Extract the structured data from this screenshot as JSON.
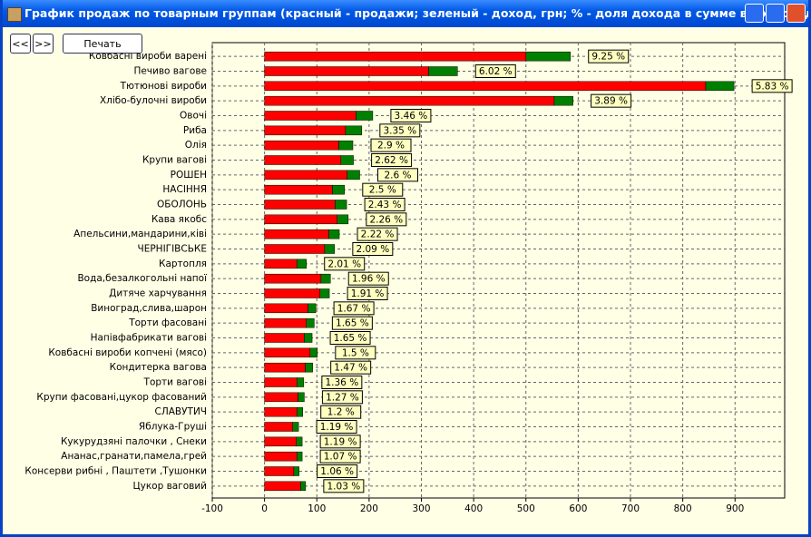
{
  "window": {
    "title": "График продаж по товарным группам (красный - продажи; зеленый - доход, грн; % - доля дохода в сумме всех доходов)"
  },
  "toolbar": {
    "buttons": [
      "<<",
      ">>",
      "Печать"
    ]
  },
  "chart_data": {
    "type": "stacked-barh",
    "categories": [
      "Ковбасні вироби варені",
      "Печиво вагове",
      "Тютюнові вироби",
      "Хлібо-булочні вироби",
      "Овочі",
      "Риба",
      "Олія",
      "Крупи вагові",
      "РОШЕН",
      "НАСІННЯ",
      "ОБОЛОНЬ",
      "Кава якобс",
      "Апельсини,мандарини,ківі",
      "ЧЕРНІГІВСЬКЕ",
      "Картопля",
      "Вода,безалкогольні напої",
      "Дитяче харчування",
      "Виноград,слива,шарон",
      "Торти фасовані",
      "Напівфабрикати вагові",
      "Ковбасні вироби копчені (мясо)",
      "Кондитерка вагова",
      "Торти вагові",
      "Крупи фасовані,цукор фасований",
      "СЛАВУТИЧ",
      "Яблука-Груші",
      "Кукурудзяні палочки , Снеки",
      "Ананас,гранати,памела,грей",
      "Консерви рибні , Паштети ,Тушонки",
      "Цукор ваговий"
    ],
    "series": [
      {
        "color": "#ff0000",
        "values": [
          500,
          314,
          844,
          554,
          175,
          155,
          142,
          146,
          158,
          130,
          135,
          139,
          123,
          115,
          62,
          108,
          106,
          83,
          80,
          76,
          87,
          78,
          62,
          64,
          62,
          54,
          61,
          62,
          56,
          69
        ]
      },
      {
        "color": "#008000",
        "values": [
          85,
          55,
          54,
          36,
          32,
          31,
          27,
          24,
          24,
          23,
          22,
          21,
          20,
          19,
          18,
          18,
          18,
          15,
          15,
          15,
          14,
          14,
          13,
          12,
          11,
          11,
          11,
          10,
          10,
          9.5
        ]
      }
    ],
    "share": {
      "values": [
        9.25,
        6.02,
        5.83,
        3.89,
        3.46,
        3.35,
        2.9,
        2.62,
        2.6,
        2.5,
        2.43,
        2.26,
        2.22,
        2.09,
        2.01,
        1.96,
        1.91,
        1.67,
        1.65,
        1.65,
        1.5,
        1.47,
        1.36,
        1.27,
        1.2,
        1.19,
        1.19,
        1.07,
        1.06,
        1.03
      ],
      "value_labels": [
        "9.25 %",
        "6.02 %",
        "5.83 %",
        "3.89 %",
        "3.46 %",
        "3.35 %",
        "2.9 %",
        "2.62 %",
        "2.6 %",
        "2.5 %",
        "2.43 %",
        "2.26 %",
        "2.22 %",
        "2.09 %",
        "2.01 %",
        "1.96 %",
        "1.91 %",
        "1.67 %",
        "1.65 %",
        "1.65 %",
        "1.5 %",
        "1.47 %",
        "1.36 %",
        "1.27 %",
        "1.2 %",
        "1.19 %",
        "1.19 %",
        "1.07 %",
        "1.06 %",
        "1.03 %"
      ]
    },
    "xlim": [
      -100,
      995
    ],
    "xticks": [
      -100,
      0,
      100,
      200,
      300,
      400,
      500,
      600,
      700,
      800,
      900
    ],
    "grid": true
  }
}
